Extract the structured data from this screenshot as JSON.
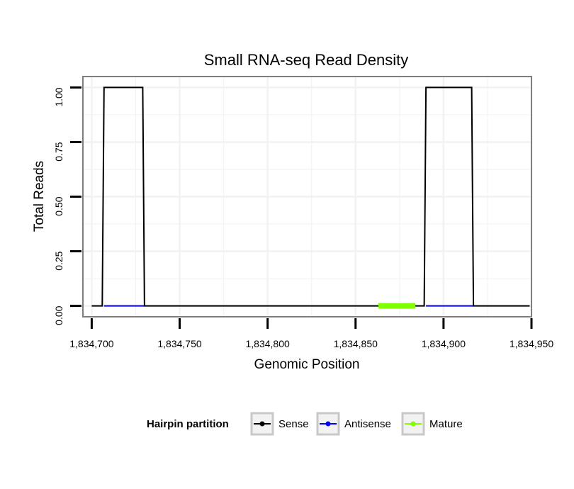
{
  "chart_data": {
    "type": "line",
    "title": "Small RNA-seq Read Density",
    "xlabel": "Genomic Position",
    "ylabel": "Total Reads",
    "xlim": [
      1834695,
      1834950
    ],
    "ylim": [
      -0.05,
      1.05
    ],
    "x_ticks": [
      1834700,
      1834750,
      1834800,
      1834850,
      1834900,
      1834950
    ],
    "x_tick_labels": [
      "1,834,700",
      "1,834,750",
      "1,834,800",
      "1,834,850",
      "1,834,900",
      "1,834,950"
    ],
    "y_ticks": [
      0,
      0.25,
      0.5,
      0.75,
      1.0
    ],
    "y_tick_labels": [
      "0.00",
      "0.25",
      "0.50",
      "0.75",
      "1.00"
    ],
    "grid": true,
    "legend": {
      "title": "Hairpin partition",
      "position": "bottom",
      "entries": [
        "Sense",
        "Antisense",
        "Mature"
      ]
    },
    "series": [
      {
        "name": "Sense",
        "color": "#000000",
        "x": [
          1834700,
          1834706,
          1834707,
          1834729,
          1834730,
          1834889,
          1834890,
          1834916,
          1834917,
          1834949
        ],
        "y": [
          0,
          0,
          1,
          1,
          0,
          0,
          1,
          1,
          0,
          0
        ]
      },
      {
        "name": "Antisense",
        "color": "#0000ff",
        "x": [
          1834707,
          1834730,
          1834890,
          1834917
        ],
        "y": [
          0,
          0,
          0,
          0
        ],
        "segments": [
          [
            1834707,
            1834730
          ],
          [
            1834890,
            1834917
          ]
        ]
      },
      {
        "name": "Mature",
        "color": "#7fff00",
        "x": [
          1834863,
          1834884
        ],
        "y": [
          0,
          0
        ],
        "segments": [
          [
            1834863,
            1834884
          ]
        ]
      }
    ]
  }
}
